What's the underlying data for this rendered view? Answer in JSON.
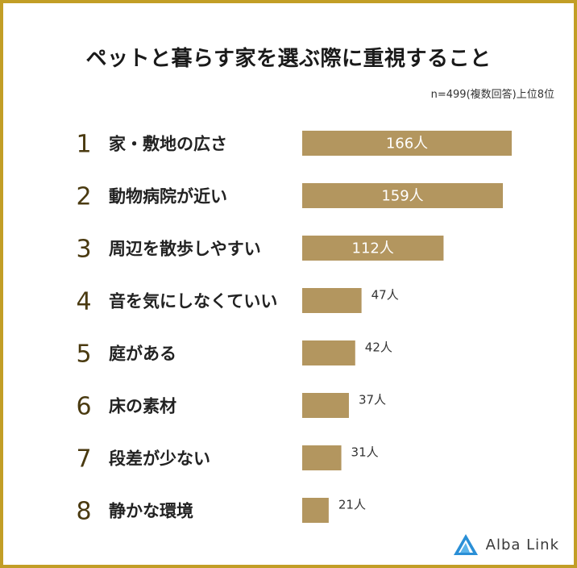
{
  "title": "ペットと暮らす家を選ぶ際に重視すること",
  "note": "n=499(複数回答)上位8位",
  "logo": {
    "text": "Alba Link",
    "icon": "alba-link-triangle-icon"
  },
  "colors": {
    "border": "#c29e26",
    "bar": "#b3965f",
    "rank": "#4a3a10"
  },
  "chart_data": {
    "type": "bar",
    "orientation": "horizontal",
    "ranks": [
      "1",
      "2",
      "3",
      "4",
      "5",
      "6",
      "7",
      "8"
    ],
    "categories": [
      "家・敷地の広さ",
      "動物病院が近い",
      "周辺を散歩しやすい",
      "音を気にしなくていい",
      "庭がある",
      "床の素材",
      "段差が少ない",
      "静かな環境"
    ],
    "values": [
      166,
      159,
      112,
      47,
      42,
      37,
      31,
      21
    ],
    "labels": [
      "166人",
      "159人",
      "112人",
      "47人",
      "42人",
      "37人",
      "31人",
      "21人"
    ],
    "unit": "人"
  }
}
